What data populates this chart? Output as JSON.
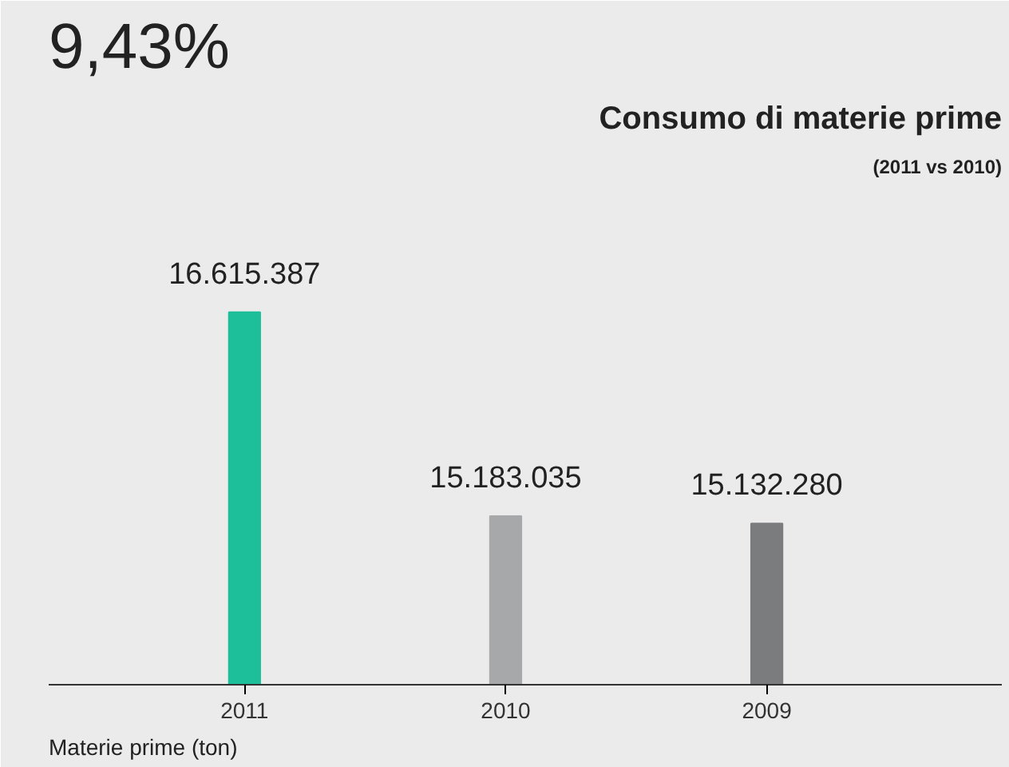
{
  "chart_data": {
    "type": "bar",
    "title": "Consumo di materie prime",
    "subtitle": "(2011 vs 2010)",
    "categories": [
      "2011",
      "2010",
      "2009"
    ],
    "values": [
      16615387,
      15183035,
      15132280
    ],
    "value_labels": [
      "16.615.387",
      "15.183.035",
      "15.132.280"
    ],
    "colors": [
      "#1dbf9a",
      "#a7a8aa",
      "#7b7c7e"
    ],
    "ylim": [
      14000000,
      17500000
    ],
    "annotations": [
      "9,43%",
      "Materie prime (ton)"
    ]
  }
}
